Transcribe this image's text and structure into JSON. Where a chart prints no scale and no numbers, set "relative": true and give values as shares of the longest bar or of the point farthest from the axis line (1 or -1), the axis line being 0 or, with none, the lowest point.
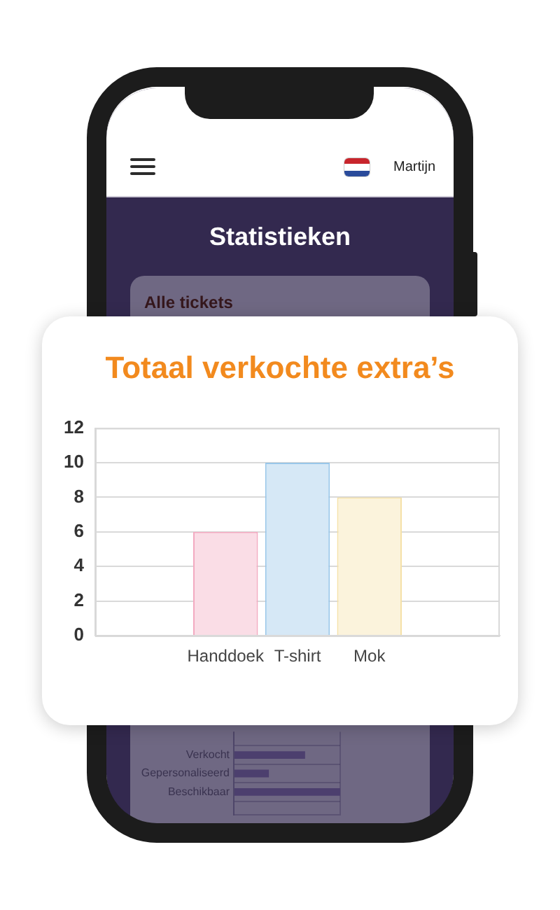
{
  "chart_data": [
    {
      "type": "other",
      "title": "Statistieken",
      "subtitle": "Alle tickets",
      "annotations": [
        "Martijn"
      ]
    },
    {
      "type": "bar",
      "orientation": "horizontal",
      "relative": true,
      "categories": [
        "Verkocht",
        "Gepersonaliseerd",
        "Beschikbaar"
      ],
      "values": [
        0.67,
        0.33,
        1
      ],
      "color": "#4c3f6e",
      "grid": true
    },
    {
      "type": "bar",
      "title": "Totaal verkochte extra’s",
      "categories": [
        "Handdoek",
        "T-shirt",
        "Mok"
      ],
      "values": [
        6,
        10,
        8
      ],
      "colors": [
        "#fadde6",
        "#d6e8f6",
        "#fbf3dc"
      ],
      "ylim": [
        0,
        12
      ],
      "yticks": [
        0,
        2,
        4,
        6,
        8,
        10,
        12
      ],
      "grid": "y"
    }
  ]
}
